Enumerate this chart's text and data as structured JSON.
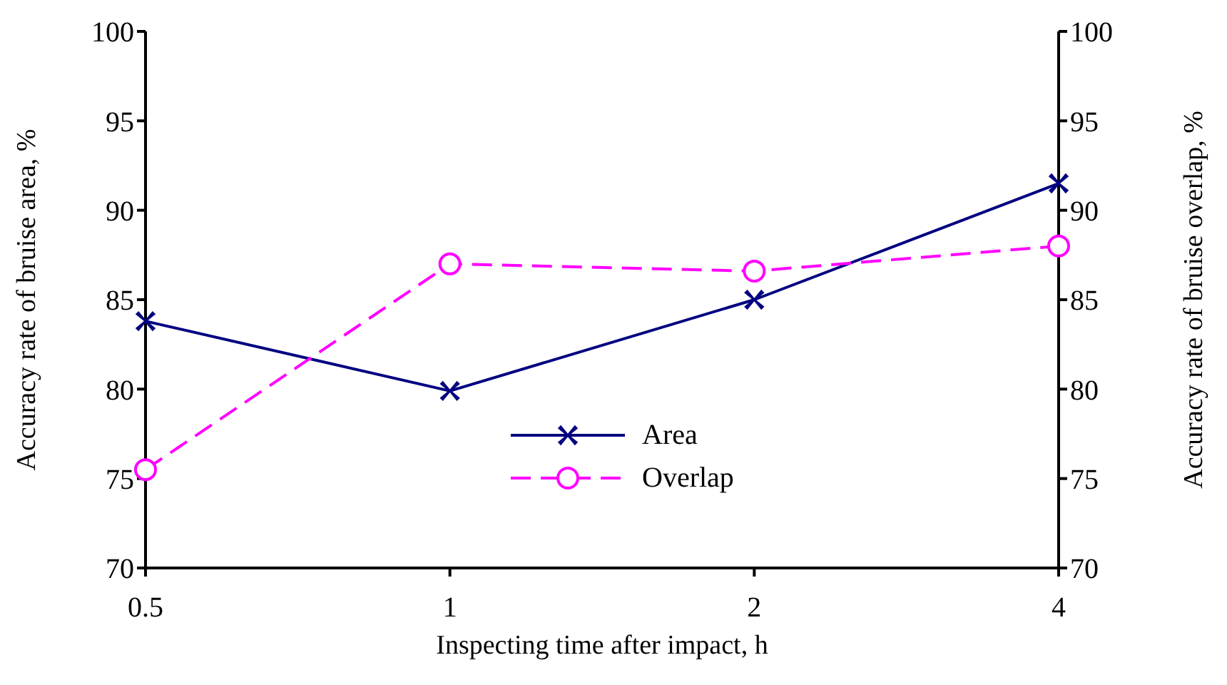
{
  "chart_data": {
    "type": "line",
    "xlabel": "Inspecting time after impact, h",
    "ylabel": "Accuracy rate of bruise area, %",
    "y2label": "Accuracy rate of bruise overlap, %",
    "categories": [
      "0.5",
      "1",
      "2",
      "4"
    ],
    "series": [
      {
        "name": "Area",
        "color": "#000080",
        "values": [
          83.8,
          79.9,
          85.0,
          91.5
        ],
        "marker": "cross",
        "line_style": "solid"
      },
      {
        "name": "Overlap",
        "color": "#ff00ff",
        "values": [
          75.5,
          87.0,
          86.6,
          88.0
        ],
        "marker": "circle",
        "line_style": "dashed",
        "axis": "y2"
      }
    ],
    "ylim": [
      70,
      100
    ],
    "yticks": [
      70,
      75,
      80,
      85,
      90,
      95,
      100
    ],
    "y2lim": [
      70,
      100
    ],
    "y2ticks": [
      70,
      75,
      80,
      85,
      90,
      95,
      100
    ],
    "legend": "bottom",
    "grid": false
  }
}
